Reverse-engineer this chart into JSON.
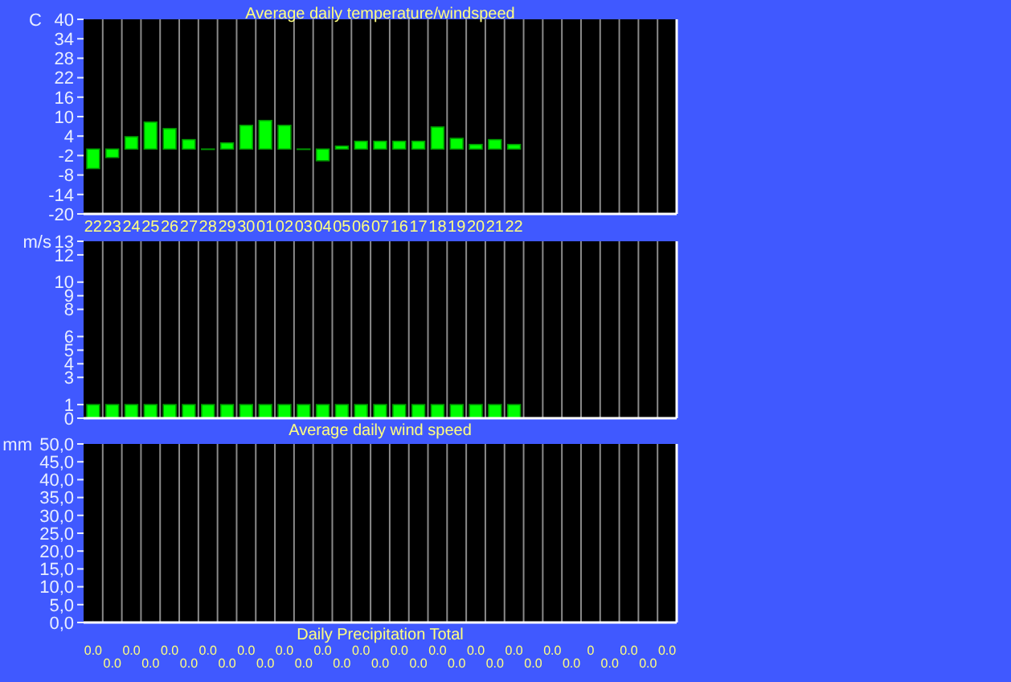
{
  "chart_data": [
    {
      "type": "bar",
      "title": "Average daily temperature/windspeed",
      "ylabel": "C",
      "categories": [
        "22",
        "23",
        "24",
        "25",
        "26",
        "27",
        "28",
        "29",
        "30",
        "01",
        "02",
        "03",
        "04",
        "05",
        "06",
        "07",
        "16",
        "17",
        "18",
        "19",
        "20",
        "21",
        "22",
        null,
        null,
        null,
        null,
        null,
        null,
        null,
        null
      ],
      "values": [
        -6,
        -2.6,
        3.8,
        8.3,
        6.3,
        2.9,
        -0.1,
        1.9,
        7.3,
        8.8,
        7.3,
        -0.1,
        -3.6,
        0.9,
        2.4,
        2.4,
        2.4,
        2.4,
        6.8,
        3.3,
        1.4,
        2.9,
        1.4,
        null,
        null,
        null,
        null,
        null,
        null,
        null,
        null
      ],
      "color": "#00ff00",
      "ylim": [
        -20,
        40
      ],
      "yticks": [
        40,
        34,
        28,
        22,
        16,
        10,
        4,
        -2,
        -8,
        -14,
        -20
      ],
      "grid": "x"
    },
    {
      "type": "bar",
      "title": "Average daily wind speed",
      "ylabel": "m/s",
      "categories": [
        null,
        null,
        null,
        null,
        null,
        null,
        null,
        null,
        null,
        null,
        null,
        null,
        null,
        null,
        null,
        null,
        null,
        null,
        null,
        null,
        null,
        null,
        null,
        null,
        null,
        null,
        null,
        null,
        null,
        null,
        null
      ],
      "values": [
        1,
        1,
        1,
        1,
        1,
        1,
        1,
        1,
        1,
        1,
        1,
        1,
        1,
        1,
        1,
        1,
        1,
        1,
        1,
        1,
        1,
        1,
        1,
        null,
        null,
        null,
        null,
        null,
        null,
        null,
        null
      ],
      "color": "#00ff00",
      "ylim": [
        0,
        13
      ],
      "yticks": [
        13,
        12,
        10,
        9,
        8,
        6,
        5,
        4,
        3,
        1,
        0
      ],
      "grid": "x"
    },
    {
      "type": "bar",
      "title": "Daily Precipitation Total",
      "ylabel": "mm",
      "categories": [
        null,
        null,
        null,
        null,
        null,
        null,
        null,
        null,
        null,
        null,
        null,
        null,
        null,
        null,
        null,
        null,
        null,
        null,
        null,
        null,
        null,
        null,
        null,
        null,
        null,
        null,
        null,
        null,
        null,
        null,
        null
      ],
      "values": [
        0,
        0,
        0,
        0,
        0,
        0,
        0,
        0,
        0,
        0,
        0,
        0,
        0,
        0,
        0,
        0,
        0,
        0,
        0,
        0,
        0,
        0,
        0,
        0,
        0,
        0,
        0,
        0,
        0,
        0,
        0
      ],
      "value_labels": [
        "0.0",
        "0.0",
        "0.0",
        "0.0",
        "0.0",
        "0.0",
        "0.0",
        "0.0",
        "0.0",
        "0.0",
        "0.0",
        "0.0",
        "0.0",
        "0.0",
        "0.0",
        "0.0",
        "0.0",
        "0.0",
        "0.0",
        "0.0",
        "0.0",
        "0.0",
        "0.0",
        "0.0",
        "0.0",
        "0.0",
        "0",
        "0.0",
        "0.0",
        "0.0",
        "0.0"
      ],
      "color": "#00ff00",
      "ylim": [
        0,
        50
      ],
      "yticks": [
        {
          "value": 50,
          "label": "50,0"
        },
        {
          "value": 45,
          "label": "45,0"
        },
        {
          "value": 40,
          "label": "40,0"
        },
        {
          "value": 35,
          "label": "35,0"
        },
        {
          "value": 30,
          "label": "30,0"
        },
        {
          "value": 25,
          "label": "25,0"
        },
        {
          "value": 20,
          "label": "20,0"
        },
        {
          "value": 15,
          "label": "15,0"
        },
        {
          "value": 10,
          "label": "10,0"
        },
        {
          "value": 5,
          "label": "5,0"
        },
        {
          "value": 0,
          "label": "0,0"
        }
      ],
      "grid": "x"
    }
  ]
}
